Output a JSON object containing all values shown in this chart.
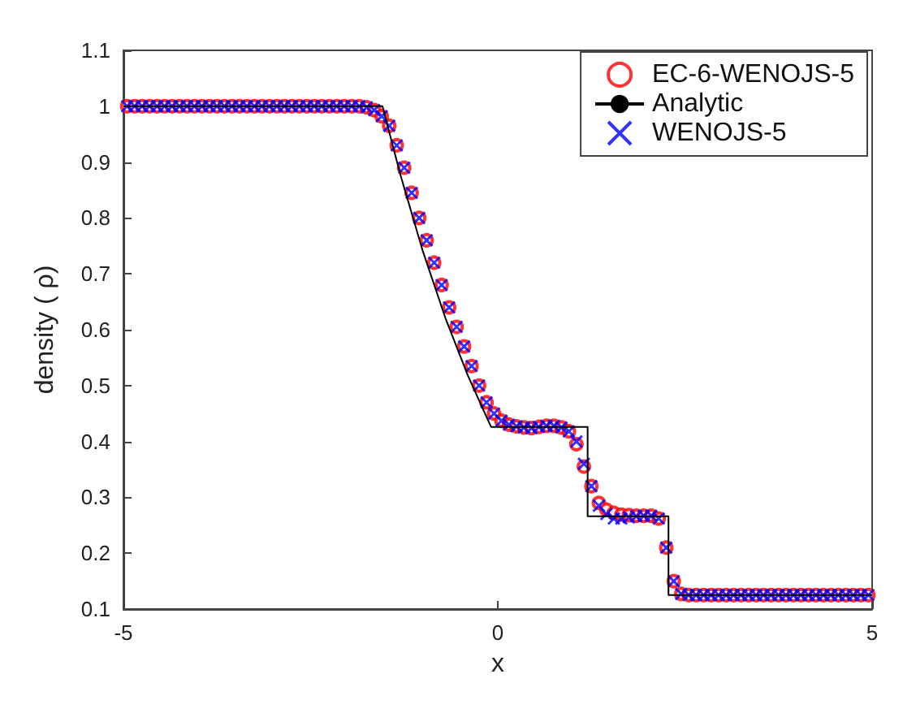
{
  "chart_data": {
    "type": "scatter",
    "xlabel": "x",
    "ylabel": "density ( ρ)",
    "xlim": [
      -5,
      5
    ],
    "xticks": [
      -5,
      0,
      5
    ],
    "ylim": [
      0.1,
      1.1
    ],
    "yticks": [
      0.1,
      0.2,
      0.3,
      0.4,
      0.5,
      0.6,
      0.7,
      0.8,
      0.9,
      1,
      1.1
    ],
    "grid": false,
    "legend": "top right",
    "x": [
      -4.95,
      -4.85,
      -4.75,
      -4.65,
      -4.55,
      -4.45,
      -4.35,
      -4.25,
      -4.15,
      -4.05,
      -3.95,
      -3.85,
      -3.75,
      -3.65,
      -3.55,
      -3.45,
      -3.35,
      -3.25,
      -3.15,
      -3.05,
      -2.95,
      -2.85,
      -2.75,
      -2.65,
      -2.55,
      -2.45,
      -2.35,
      -2.25,
      -2.15,
      -2.05,
      -1.95,
      -1.85,
      -1.75,
      -1.65,
      -1.55,
      -1.45,
      -1.35,
      -1.25,
      -1.15,
      -1.05,
      -0.95,
      -0.85,
      -0.75,
      -0.65,
      -0.55,
      -0.45,
      -0.35,
      -0.25,
      -0.15,
      -0.05,
      0.05,
      0.15,
      0.25,
      0.35,
      0.45,
      0.55,
      0.65,
      0.75,
      0.85,
      0.95,
      1.05,
      1.15,
      1.25,
      1.35,
      1.45,
      1.55,
      1.65,
      1.75,
      1.85,
      1.95,
      2.05,
      2.15,
      2.25,
      2.35,
      2.45,
      2.55,
      2.65,
      2.75,
      2.85,
      2.95,
      3.05,
      3.15,
      3.25,
      3.35,
      3.45,
      3.55,
      3.65,
      3.75,
      3.85,
      3.95,
      4.05,
      4.15,
      4.25,
      4.35,
      4.45,
      4.55,
      4.65,
      4.75,
      4.85,
      4.95
    ],
    "series": [
      {
        "name": "EC-6-WENOJS-5",
        "marker": "circle",
        "color": "#ff0000",
        "values": [
          1,
          1,
          1,
          1,
          1,
          1,
          1,
          1,
          1,
          1,
          1,
          1,
          1,
          1,
          1,
          1,
          1,
          1,
          1,
          1,
          1,
          1,
          1,
          1,
          1,
          1,
          1,
          1,
          1,
          1,
          1,
          1,
          0.998,
          0.993,
          0.982,
          0.965,
          0.93,
          0.89,
          0.845,
          0.8,
          0.76,
          0.72,
          0.68,
          0.64,
          0.605,
          0.57,
          0.535,
          0.5,
          0.47,
          0.45,
          0.437,
          0.43,
          0.427,
          0.425,
          0.424,
          0.426,
          0.428,
          0.428,
          0.425,
          0.418,
          0.395,
          0.355,
          0.32,
          0.29,
          0.278,
          0.272,
          0.269,
          0.268,
          0.267,
          0.267,
          0.267,
          0.262,
          0.21,
          0.15,
          0.127,
          0.125,
          0.125,
          0.125,
          0.125,
          0.125,
          0.125,
          0.125,
          0.125,
          0.125,
          0.125,
          0.125,
          0.125,
          0.125,
          0.125,
          0.125,
          0.125,
          0.125,
          0.125,
          0.125,
          0.125,
          0.125,
          0.125,
          0.125,
          0.125,
          0.125
        ]
      },
      {
        "name": "Analytic",
        "type": "line",
        "marker": "none",
        "color": "#000000",
        "x": [
          -5,
          -1.54,
          -1.3,
          -1.0,
          -0.7,
          -0.4,
          -0.1,
          -0.09,
          1.2,
          1.2,
          2.28,
          2.28,
          5
        ],
        "values": [
          1,
          1,
          0.877,
          0.74,
          0.621,
          0.518,
          0.429,
          0.426,
          0.426,
          0.266,
          0.266,
          0.125,
          0.125
        ]
      },
      {
        "name": "WENOJS-5",
        "marker": "cross",
        "color": "#0000ff",
        "values": [
          1,
          1,
          1,
          1,
          1,
          1,
          1,
          1,
          1,
          1,
          1,
          1,
          1,
          1,
          1,
          1,
          1,
          1,
          1,
          1,
          1,
          1,
          1,
          1,
          1,
          1,
          1,
          1,
          1,
          1,
          1,
          1,
          0.998,
          0.993,
          0.982,
          0.965,
          0.93,
          0.89,
          0.845,
          0.8,
          0.76,
          0.72,
          0.68,
          0.64,
          0.605,
          0.57,
          0.535,
          0.5,
          0.47,
          0.45,
          0.437,
          0.43,
          0.427,
          0.425,
          0.424,
          0.426,
          0.428,
          0.428,
          0.425,
          0.418,
          0.4,
          0.36,
          0.32,
          0.285,
          0.27,
          0.262,
          0.262,
          0.264,
          0.266,
          0.267,
          0.267,
          0.262,
          0.21,
          0.15,
          0.127,
          0.125,
          0.125,
          0.125,
          0.125,
          0.125,
          0.125,
          0.125,
          0.125,
          0.125,
          0.125,
          0.125,
          0.125,
          0.125,
          0.125,
          0.125,
          0.125,
          0.125,
          0.125,
          0.125,
          0.125,
          0.125,
          0.125,
          0.125,
          0.125,
          0.125
        ]
      }
    ]
  }
}
